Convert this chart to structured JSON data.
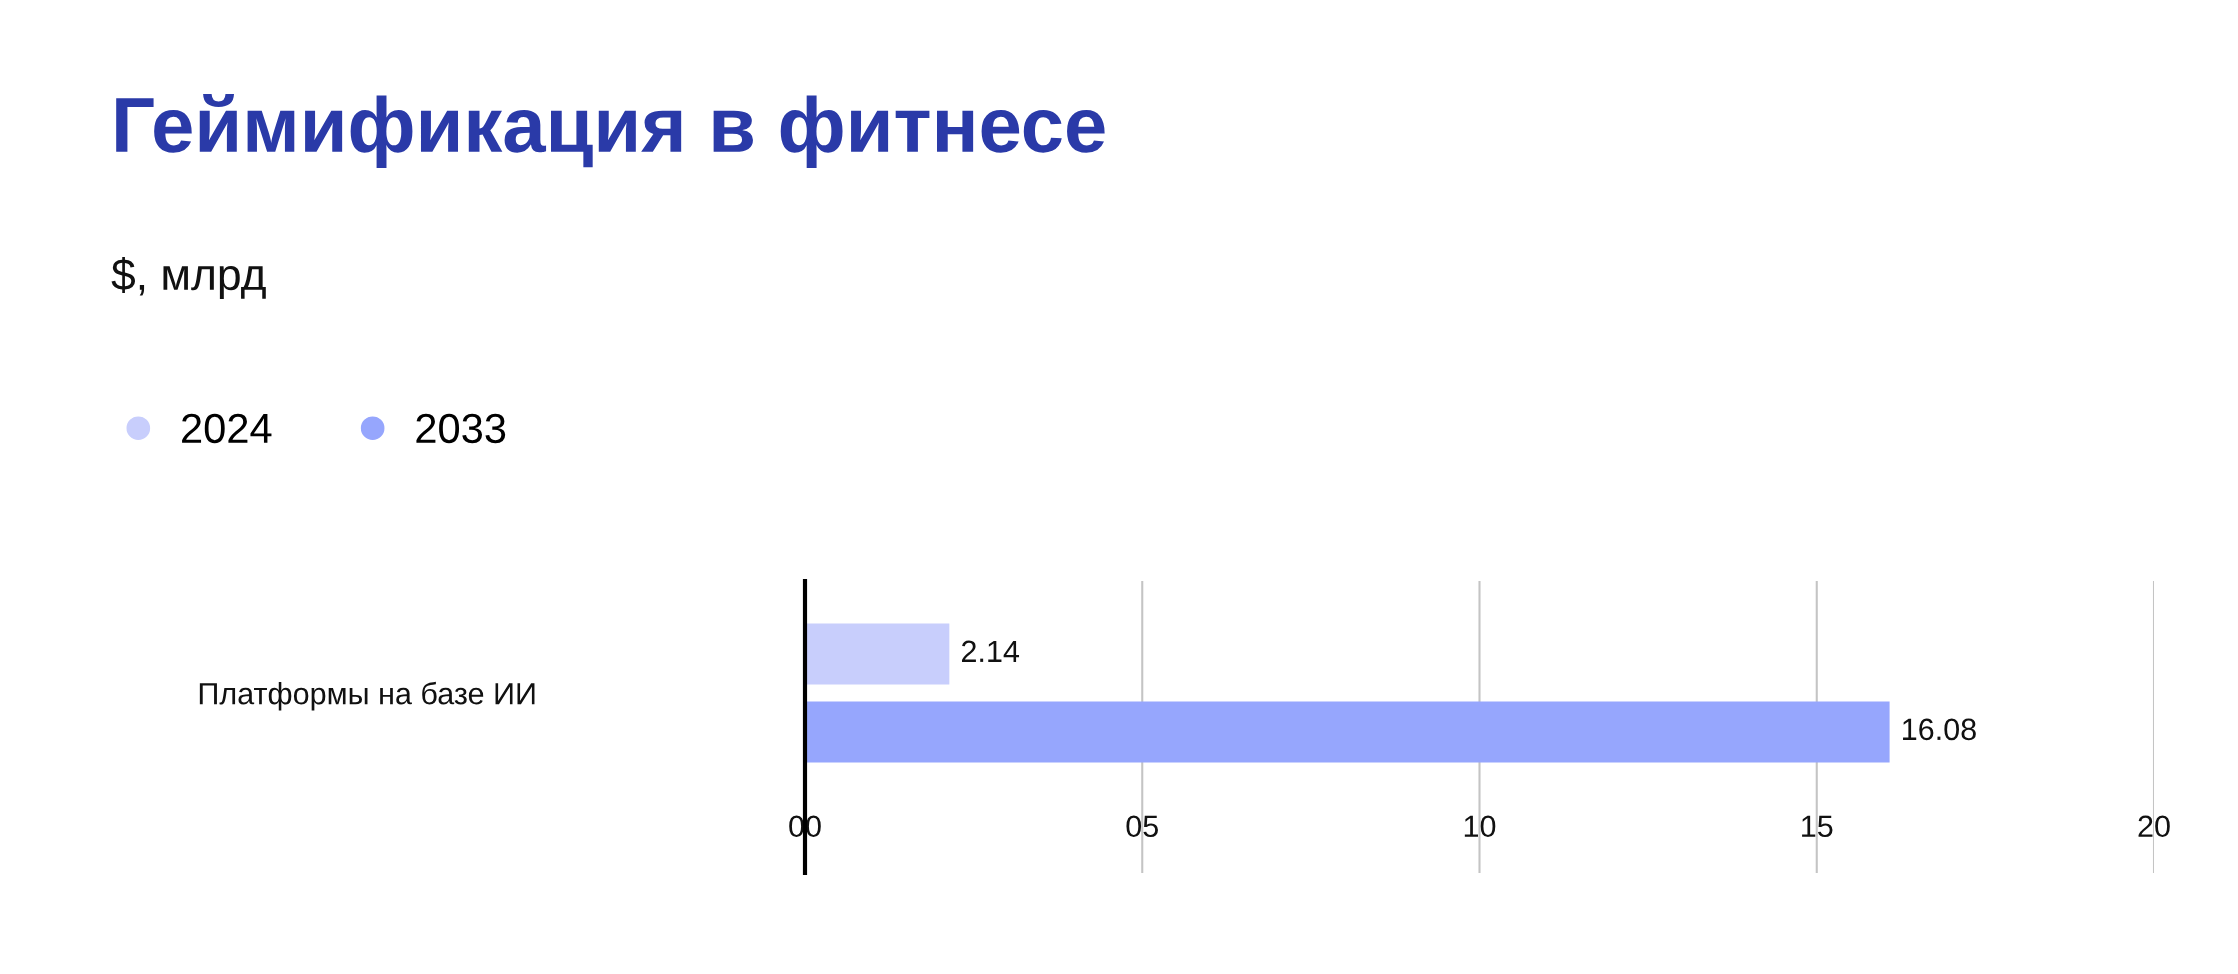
{
  "chart_data": {
    "type": "bar",
    "orientation": "horizontal",
    "title": "Геймификация в фитнесе",
    "subtitle": "$, млрд",
    "categories": [
      "Платформы на базе ИИ"
    ],
    "series": [
      {
        "name": "2024",
        "color": "#c8cefc",
        "values": [
          2.14
        ]
      },
      {
        "name": "2033",
        "color": "#96a6fd",
        "values": [
          16.08
        ]
      }
    ],
    "xlim": [
      0,
      20
    ],
    "xticks": [
      {
        "value": 0,
        "label": "00"
      },
      {
        "value": 5,
        "label": "05"
      },
      10,
      15,
      20
    ],
    "grid": "x",
    "legend": "top left",
    "data_labels": true
  }
}
